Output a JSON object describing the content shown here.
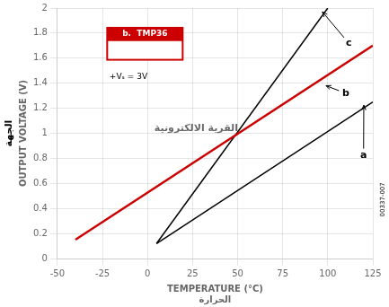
{
  "chart_data": {
    "type": "line",
    "xlabel": [
      "TEMPERATURE (°C)",
      "الحرارة"
    ],
    "ylabel": [
      "OUTPUT VOLTAGE (V)",
      "الجهة"
    ],
    "series": [
      {
        "color": "#cc0000",
        "x": [
          -40,
          125
        ],
        "values": [
          0.15,
          1.7
        ]
      },
      {
        "color": "#000000",
        "x": [
          5,
          100
        ],
        "values": [
          0.12,
          2.0
        ]
      },
      {
        "color": "#000000",
        "x": [
          5,
          125
        ],
        "values": [
          0.12,
          1.25
        ]
      }
    ],
    "xlim": [
      -50,
      125
    ],
    "ylim": [
      0,
      2.0
    ],
    "xticks": [
      -50,
      -25,
      0,
      25,
      50,
      75,
      100,
      125
    ],
    "yticks": [
      0,
      0.2,
      0.4,
      0.6,
      0.8,
      1.0,
      1.2,
      1.4,
      1.6,
      1.8,
      2.0
    ],
    "grid": true,
    "marker": "none",
    "annotations": [
      {
        "text": "c",
        "xy": [
          97,
          1.97
        ],
        "xytext": [
          110,
          1.72
        ]
      },
      {
        "text": "b",
        "xy": [
          99,
          1.38
        ],
        "xytext": [
          108,
          1.32
        ]
      },
      {
        "text": "a",
        "xy": [
          120,
          1.225
        ],
        "xytext": [
          118,
          0.82
        ]
      }
    ],
    "box_title": "b.  TMP36",
    "box_note": "+Vₛ = 3V",
    "watermark": "القرية الالكترونية",
    "code_text": "00337-007"
  }
}
